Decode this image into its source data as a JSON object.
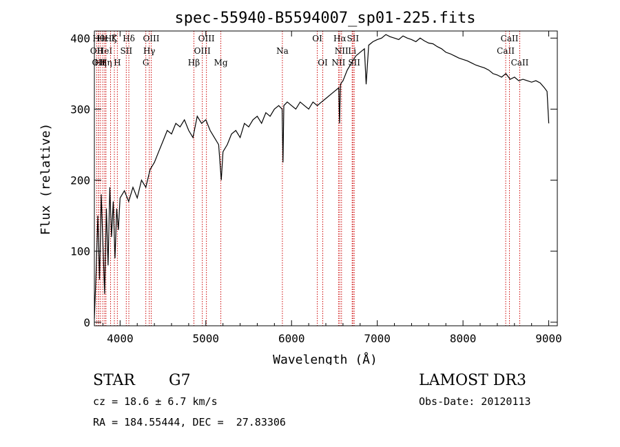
{
  "chart_data": {
    "type": "line",
    "title": "spec-55940-B5594007_sp01-225.fits",
    "xlabel": "Wavelength (Å)",
    "ylabel": "Flux (relative)",
    "xlim": [
      3700,
      9100
    ],
    "ylim": [
      -5,
      410
    ],
    "xticks": [
      4000,
      5000,
      6000,
      7000,
      8000,
      9000
    ],
    "yticks": [
      0,
      100,
      200,
      300,
      400
    ],
    "series": [
      {
        "name": "spectrum",
        "x": [
          3700,
          3720,
          3740,
          3760,
          3780,
          3800,
          3820,
          3840,
          3860,
          3880,
          3900,
          3920,
          3940,
          3960,
          3980,
          4000,
          4050,
          4100,
          4150,
          4200,
          4250,
          4300,
          4350,
          4400,
          4450,
          4500,
          4550,
          4600,
          4650,
          4700,
          4750,
          4800,
          4850,
          4900,
          4950,
          5000,
          5050,
          5100,
          5150,
          5180,
          5200,
          5250,
          5300,
          5350,
          5400,
          5450,
          5500,
          5550,
          5600,
          5650,
          5700,
          5750,
          5800,
          5850,
          5890,
          5900,
          5910,
          5950,
          6000,
          6050,
          6100,
          6150,
          6200,
          6250,
          6300,
          6350,
          6400,
          6450,
          6500,
          6550,
          6560,
          6570,
          6600,
          6650,
          6700,
          6750,
          6800,
          6850,
          6870,
          6900,
          6950,
          7000,
          7050,
          7100,
          7150,
          7200,
          7250,
          7300,
          7350,
          7400,
          7450,
          7500,
          7550,
          7600,
          7650,
          7700,
          7750,
          7800,
          7850,
          7900,
          7950,
          8000,
          8050,
          8100,
          8150,
          8200,
          8250,
          8300,
          8350,
          8400,
          8450,
          8500,
          8550,
          8600,
          8650,
          8700,
          8750,
          8800,
          8850,
          8900,
          8950,
          8980,
          9000
        ],
        "y": [
          5,
          70,
          150,
          60,
          180,
          110,
          40,
          160,
          80,
          190,
          120,
          170,
          90,
          160,
          130,
          175,
          185,
          170,
          190,
          175,
          200,
          190,
          215,
          225,
          240,
          255,
          270,
          265,
          280,
          275,
          285,
          270,
          260,
          290,
          280,
          285,
          270,
          260,
          250,
          200,
          240,
          250,
          265,
          270,
          260,
          280,
          275,
          285,
          290,
          280,
          295,
          290,
          300,
          305,
          300,
          225,
          305,
          310,
          305,
          300,
          310,
          305,
          300,
          310,
          305,
          310,
          315,
          320,
          325,
          330,
          280,
          335,
          340,
          355,
          365,
          375,
          380,
          385,
          335,
          390,
          395,
          398,
          400,
          405,
          402,
          400,
          398,
          403,
          400,
          398,
          395,
          400,
          396,
          393,
          392,
          388,
          385,
          380,
          378,
          375,
          372,
          370,
          368,
          365,
          362,
          360,
          358,
          355,
          350,
          348,
          345,
          350,
          342,
          345,
          340,
          342,
          340,
          338,
          340,
          337,
          330,
          325,
          280
        ]
      }
    ],
    "line_markers": [
      {
        "wavelength": 3727,
        "label": "OII",
        "row": 1
      },
      {
        "wavelength": 3750,
        "label": "Hθ",
        "row": 0
      },
      {
        "wavelength": 3750,
        "label": "OII",
        "row": 2
      },
      {
        "wavelength": 3771,
        "label": "Hη",
        "row": 2
      },
      {
        "wavelength": 3798,
        "label": "Hε",
        "row": 0
      },
      {
        "wavelength": 3820,
        "label": "HeI",
        "row": 1
      },
      {
        "wavelength": 3835,
        "label": "Hη",
        "row": 2
      },
      {
        "wavelength": 3889,
        "label": "Hζ",
        "row": 0
      },
      {
        "wavelength": 3933,
        "label": "K",
        "row": 0
      },
      {
        "wavelength": 3968,
        "label": "H",
        "row": 2
      },
      {
        "wavelength": 4072,
        "label": "SII",
        "row": 1
      },
      {
        "wavelength": 4102,
        "label": "Hδ",
        "row": 0
      },
      {
        "wavelength": 4300,
        "label": "G",
        "row": 2
      },
      {
        "wavelength": 4340,
        "label": "Hγ",
        "row": 1
      },
      {
        "wavelength": 4363,
        "label": "OIII",
        "row": 0
      },
      {
        "wavelength": 4861,
        "label": "Hβ",
        "row": 2
      },
      {
        "wavelength": 4959,
        "label": "OIII",
        "row": 1
      },
      {
        "wavelength": 5007,
        "label": "OIII",
        "row": 0
      },
      {
        "wavelength": 5175,
        "label": "Mg",
        "row": 2
      },
      {
        "wavelength": 5893,
        "label": "Na",
        "row": 1
      },
      {
        "wavelength": 6300,
        "label": "OI",
        "row": 0
      },
      {
        "wavelength": 6364,
        "label": "OI",
        "row": 2
      },
      {
        "wavelength": 6548,
        "label": "NII",
        "row": 2
      },
      {
        "wavelength": 6563,
        "label": "Hα",
        "row": 0
      },
      {
        "wavelength": 6583,
        "label": "NII",
        "row": 1
      },
      {
        "wavelength": 6707,
        "label": "Li",
        "row": 1
      },
      {
        "wavelength": 6716,
        "label": "SII",
        "row": 0
      },
      {
        "wavelength": 6731,
        "label": "SII",
        "row": 2
      },
      {
        "wavelength": 8498,
        "label": "CaII",
        "row": 1
      },
      {
        "wavelength": 8542,
        "label": "CaII",
        "row": 0
      },
      {
        "wavelength": 8662,
        "label": "CaII",
        "row": 2
      }
    ],
    "marker_color": "#cc0000"
  },
  "info": {
    "obj_class": "STAR",
    "subclass": "G7",
    "survey": "LAMOST DR3",
    "cz": "cz = 18.6 ± 6.7 km/s",
    "obs_date": "Obs-Date: 20120113",
    "coords": "RA = 184.55444, DEC =  27.83306"
  }
}
